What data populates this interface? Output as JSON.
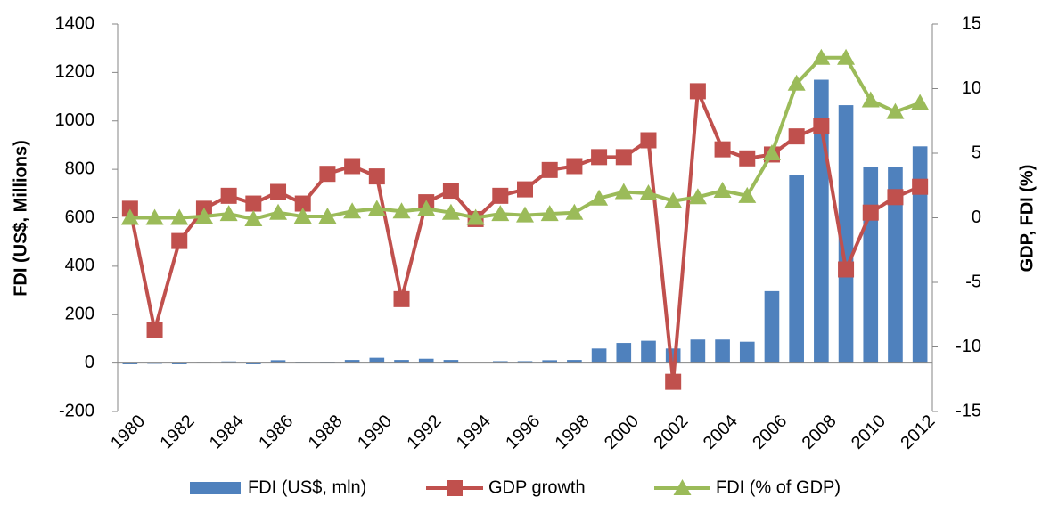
{
  "chart_data": {
    "type": "bar_line",
    "y_label": "FDI (US$, Millions)",
    "y2_label": "GDP, FDI (%)",
    "categories": [
      "1980",
      null,
      "1982",
      null,
      "1984",
      null,
      "1986",
      null,
      "1988",
      null,
      "1990",
      null,
      "1992",
      null,
      "1994",
      null,
      "1996",
      null,
      "1998",
      null,
      "2000",
      null,
      "2002",
      null,
      "2004",
      null,
      "2006",
      null,
      "2008",
      null,
      "2010",
      null,
      "2012"
    ],
    "ylim": [
      -200,
      1400
    ],
    "yticks": [
      -200,
      0,
      200,
      400,
      600,
      800,
      1000,
      1200,
      1400
    ],
    "y2lim": [
      -15,
      15
    ],
    "y2ticks": [
      -15,
      -10,
      -5,
      0,
      5,
      10,
      15
    ],
    "series": [
      {
        "name": "FDI (US$, mln)",
        "type": "bar",
        "color": "#4f81bd",
        "values": [
          -5,
          -3,
          -5,
          1,
          7,
          -5,
          12,
          2,
          2,
          13,
          22,
          13,
          18,
          13,
          0,
          8,
          8,
          12,
          13,
          60,
          83,
          92,
          60,
          97,
          97,
          88,
          297,
          775,
          1170,
          1065,
          808,
          810,
          895
        ]
      },
      {
        "name": "GDP growth",
        "type": "line",
        "marker": "square",
        "axis": "y2",
        "color": "#c0504d",
        "values": [
          0.7,
          -8.7,
          -1.8,
          0.7,
          1.7,
          1.1,
          2.0,
          1.1,
          3.4,
          4.0,
          3.2,
          -6.3,
          1.2,
          2.1,
          -0.1,
          1.7,
          2.2,
          3.7,
          4.0,
          4.7,
          4.7,
          6.0,
          -12.7,
          9.8,
          5.3,
          4.6,
          4.9,
          6.3,
          7.1,
          -4.0,
          0.4,
          1.6,
          2.4
        ]
      },
      {
        "name": "FDI (% of GDP)",
        "type": "line",
        "marker": "triangle",
        "axis": "y2",
        "color": "#9bbb59",
        "values": [
          0,
          0,
          0,
          0.1,
          0.3,
          -0.1,
          0.4,
          0.1,
          0.1,
          0.5,
          0.7,
          0.5,
          0.7,
          0.4,
          0,
          0.3,
          0.2,
          0.3,
          0.4,
          1.5,
          2.0,
          1.9,
          1.3,
          1.6,
          2.1,
          1.7,
          5.0,
          10.4,
          12.4,
          12.4,
          9.1,
          8.2,
          8.9
        ]
      }
    ]
  }
}
